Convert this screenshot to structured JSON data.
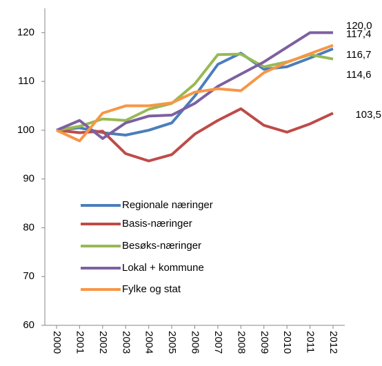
{
  "chart_data": {
    "type": "line",
    "categories": [
      "2000",
      "2001",
      "2002",
      "2003",
      "2004",
      "2005",
      "2006",
      "2007",
      "2008",
      "2009",
      "2010",
      "2011",
      "2012"
    ],
    "series": [
      {
        "name": "Regionale næringer",
        "color": "#4a7ebb",
        "values": [
          100,
          100.5,
          99.5,
          99,
          100,
          101.5,
          107,
          113.5,
          115.8,
          112.5,
          113,
          114.8,
          116.7
        ],
        "value_labels": [
          null,
          null,
          null,
          null,
          null,
          null,
          null,
          null,
          null,
          null,
          null,
          null,
          "116,7"
        ]
      },
      {
        "name": "Basis-næringer",
        "color": "#be4b48",
        "values": [
          100,
          99.5,
          99.8,
          95.2,
          93.7,
          95,
          99.2,
          102,
          104.4,
          101,
          99.6,
          101.3,
          103.5
        ],
        "value_labels": [
          null,
          null,
          null,
          null,
          null,
          null,
          null,
          null,
          null,
          null,
          null,
          null,
          "103,5"
        ]
      },
      {
        "name": "Besøks-næringer",
        "color": "#98b954",
        "values": [
          100,
          100.8,
          102.3,
          102,
          104.3,
          105.5,
          109.5,
          115.5,
          115.6,
          113,
          114,
          115.5,
          114.6
        ],
        "value_labels": [
          null,
          null,
          null,
          null,
          null,
          null,
          null,
          null,
          null,
          null,
          null,
          null,
          "114,6"
        ]
      },
      {
        "name": "Lokal + kommune",
        "color": "#7d60a0",
        "values": [
          100,
          102,
          98.3,
          101.5,
          102.9,
          103.1,
          105.5,
          109,
          111.5,
          114,
          117,
          120,
          120.0
        ],
        "value_labels": [
          null,
          null,
          null,
          null,
          null,
          null,
          null,
          null,
          null,
          null,
          null,
          null,
          "120,0"
        ]
      },
      {
        "name": "Fylke og stat",
        "color": "#f79646",
        "values": [
          100,
          97.8,
          103.5,
          105,
          105,
          105.6,
          107.8,
          108.5,
          108.1,
          111.8,
          113.9,
          115.7,
          117.4
        ],
        "value_labels": [
          null,
          null,
          null,
          null,
          null,
          null,
          null,
          null,
          null,
          null,
          null,
          null,
          "117,4"
        ]
      }
    ],
    "ylim": [
      60,
      125
    ],
    "yticks": [
      60,
      70,
      80,
      90,
      100,
      110,
      120
    ],
    "grid": false
  }
}
